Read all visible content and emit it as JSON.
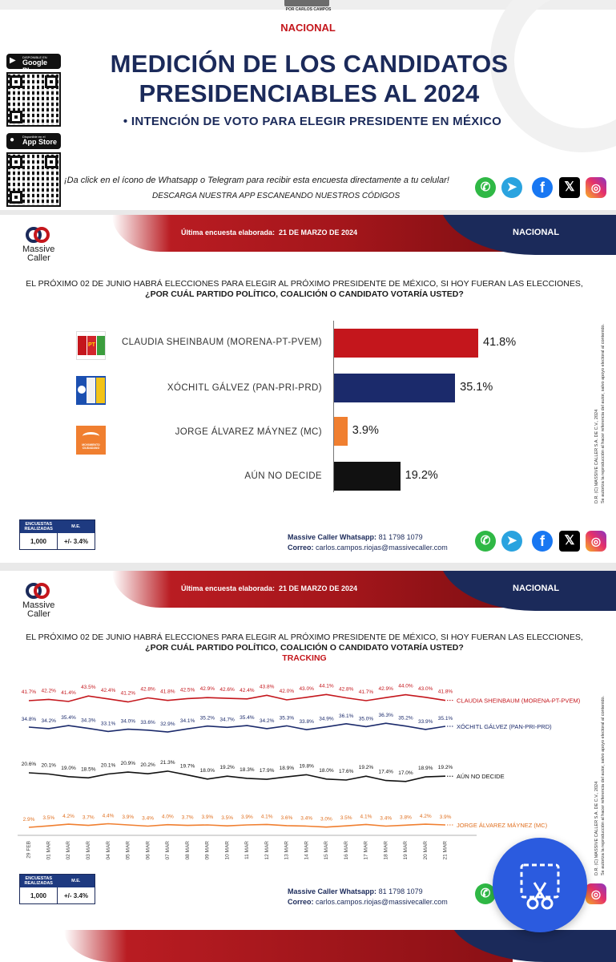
{
  "header": {
    "top_credit": "POR CARLOS CAMPOS",
    "scope": "NACIONAL",
    "title_line1": "MEDICIÓN DE LOS CANDIDATOS",
    "title_line2": "PRESIDENCIABLES AL 2024",
    "subtitle": "•   INTENCIÓN DE VOTO PARA ELEGIR PRESIDENTE EN MÉXICO",
    "google_play_small": "DISPONIBLE EN",
    "google_play_big": "Google Play",
    "app_store_small": "Disponible en el",
    "app_store_big": "App Store",
    "promo_line1": "¡Da click en el ícono de Whatsapp o Telegram para recibir esta encuesta directamente a tu celular!",
    "promo_line2": "DESCARGA NUESTRA APP ESCANEANDO NUESTROS CÓDIGOS"
  },
  "panel1": {
    "latest_label": "Última encuesta elaborada:",
    "latest_date": "21 DE MARZO DE 2024",
    "scope": "NACIONAL",
    "brand_line1": "Massive",
    "brand_line2": "Caller",
    "question_line1": "EL PRÓXIMO 02 DE JUNIO HABRÁ ELECCIONES PARA ELEGIR AL PRÓXIMO PRESIDENTE DE MÉXICO, SI HOY FUERAN LAS ELECCIONES,",
    "question_line2": "¿POR CUÁL PARTIDO POLÍTICO, COALICIÓN O CANDIDATO VOTARÍA USTED?",
    "vertical_credit_1": "D.R. (C) MASSIVE CALLER S.A. DE C.V., 2024",
    "vertical_credit_2": "Se autoriza la reproducción al hacer referencia del autor, salvo apoyo electoral al contenido.",
    "table": {
      "col1_head": "ENCUESTAS REALIZADAS",
      "col2_head": "M.E.",
      "col1_value": "1,000",
      "col2_value": "+/- 3.4%"
    },
    "whatsapp_label": "Massive Caller Whatsapp:",
    "whatsapp_number": "81 1798 1079",
    "email_label": "Correo:",
    "email": "carlos.campos.riojas@massivecaller.com",
    "logo_pt": "PT",
    "logo_mc": "MOVIMIENTO CIUDADANO"
  },
  "panel2": {
    "latest_label": "Última encuesta elaborada:",
    "latest_date": "21 DE MARZO DE 2024",
    "scope": "NACIONAL",
    "brand_line1": "Massive",
    "brand_line2": "Caller",
    "question_line1": "EL PRÓXIMO 02 DE JUNIO HABRÁ ELECCIONES PARA ELEGIR AL PRÓXIMO PRESIDENTE DE MÉXICO, SI HOY FUERAN LAS ELECCIONES,",
    "question_line2": "¿POR CUÁL PARTIDO POLÍTICO, COALICIÓN O CANDIDATO VOTARÍA USTED?",
    "tracking": "TRACKING",
    "vertical_credit_1": "D.R. (C) MASSIVE CALLER S.A. DE C.V., 2024",
    "vertical_credit_2": "Se autoriza la reproducción al hacer referencia del autor, salvo apoyo electoral al contenido.",
    "table": {
      "col1_head": "ENCUESTAS REALIZADAS",
      "col2_head": "M.E.",
      "col1_value": "1,000",
      "col2_value": "+/- 3.4%"
    },
    "whatsapp_label": "Massive Caller Whatsapp:",
    "whatsapp_number": "81 1798 1079",
    "email_label": "Correo:",
    "email": "carlos.campos.riojas@massivecaller.com"
  },
  "colors": {
    "morena": "#c4161c",
    "pan": "#1b2a6b",
    "mc": "#f07f30",
    "undecided": "#111111",
    "navy": "#1b2a5a"
  },
  "chart_data": [
    {
      "type": "bar",
      "orientation": "horizontal",
      "title": "¿POR CUÁL PARTIDO POLÍTICO, COALICIÓN O CANDIDATO VOTARÍA USTED?",
      "categories": [
        "CLAUDIA SHEINBAUM (MORENA-PT-PVEM)",
        "XÓCHITL GÁLVEZ (PAN-PRI-PRD)",
        "JORGE ÁLVAREZ MÁYNEZ (MC)",
        "AÚN NO DECIDE"
      ],
      "values": [
        41.8,
        35.1,
        3.9,
        19.2
      ],
      "value_labels": [
        "41.8%",
        "35.1%",
        "3.9%",
        "19.2%"
      ],
      "colors": [
        "#c4161c",
        "#1b2a6b",
        "#f07f30",
        "#111111"
      ],
      "xlim": [
        0,
        50
      ]
    },
    {
      "type": "line",
      "title": "TRACKING",
      "x": [
        "29 FEB",
        "01 MAR",
        "02 MAR",
        "03 MAR",
        "04 MAR",
        "05 MAR",
        "06 MAR",
        "07 MAR",
        "08 MAR",
        "09 MAR",
        "10 MAR",
        "11 MAR",
        "12 MAR",
        "13 MAR",
        "14 MAR",
        "15 MAR",
        "16 MAR",
        "17 MAR",
        "18 MAR",
        "19 MAR",
        "20 MAR",
        "21 MAR"
      ],
      "series": [
        {
          "name": "CLAUDIA SHEINBAUM (MORENA-PT-PVEM)",
          "color": "#c4161c",
          "values": [
            41.7,
            42.2,
            41.4,
            43.5,
            42.4,
            41.2,
            42.8,
            41.8,
            42.5,
            42.9,
            42.6,
            42.4,
            43.8,
            42.0,
            43.0,
            44.1,
            42.8,
            41.7,
            42.9,
            44.0,
            43.0,
            41.8
          ],
          "labels": [
            "41.7%",
            "42.2%",
            "41.4%",
            "43.5%",
            "42.4%",
            "41.2%",
            "42.8%",
            "41.8%",
            "42.5%",
            "42.9%",
            "42.6%",
            "42.4%",
            "43.8%",
            "42.0%",
            "43.0%",
            "44.1%",
            "42.8%",
            "41.7%",
            "42.9%",
            "44.0%",
            "43.0%",
            "41.8%"
          ]
        },
        {
          "name": "XÓCHITL GÁLVEZ (PAN-PRI-PRD)",
          "color": "#1b2a6b",
          "values": [
            34.8,
            34.2,
            35.4,
            34.3,
            33.1,
            34.0,
            33.6,
            32.9,
            34.1,
            35.2,
            34.7,
            35.4,
            34.2,
            35.3,
            33.8,
            34.9,
            36.1,
            35.0,
            36.3,
            35.2,
            33.9,
            35.1
          ],
          "labels": [
            "34.8%",
            "34.2%",
            "35.4%",
            "34.3%",
            "33.1%",
            "34.0%",
            "33.6%",
            "32.9%",
            "34.1%",
            "35.2%",
            "34.7%",
            "35.4%",
            "34.2%",
            "35.3%",
            "33.8%",
            "34.9%",
            "36.1%",
            "35.0%",
            "36.3%",
            "35.2%",
            "33.9%",
            "35.1%"
          ]
        },
        {
          "name": "AÚN NO DECIDE",
          "color": "#111111",
          "values": [
            20.6,
            20.1,
            19.0,
            18.5,
            20.1,
            20.9,
            20.2,
            21.3,
            19.7,
            18.0,
            19.2,
            18.3,
            17.9,
            18.9,
            19.8,
            18.0,
            17.6,
            19.2,
            17.4,
            17.0,
            18.9,
            19.2
          ],
          "labels": [
            "20.6%",
            "20.1%",
            "19.0%",
            "18.5%",
            "20.1%",
            "20.9%",
            "20.2%",
            "21.3%",
            "19.7%",
            "18.0%",
            "19.2%",
            "18.3%",
            "17.9%",
            "18.9%",
            "19.8%",
            "18.0%",
            "17.6%",
            "19.2%",
            "17.4%",
            "17.0%",
            "18.9%",
            "19.2%"
          ]
        },
        {
          "name": "JORGE ÁLVAREZ MÁYNEZ (MC)",
          "color": "#f07f30",
          "values": [
            2.9,
            3.5,
            4.2,
            3.7,
            4.4,
            3.9,
            3.4,
            4.0,
            3.7,
            3.9,
            3.5,
            3.9,
            4.1,
            3.6,
            3.4,
            3.0,
            3.5,
            4.1,
            3.4,
            3.8,
            4.2,
            3.9
          ],
          "labels": [
            "2.9%",
            "3.5%",
            "4.2%",
            "3.7%",
            "4.4%",
            "3.9%",
            "3.4%",
            "4.0%",
            "3.7%",
            "3.9%",
            "3.5%",
            "3.9%",
            "4.1%",
            "3.6%",
            "3.4%",
            "3.0%",
            "3.5%",
            "4.1%",
            "3.4%",
            "3.8%",
            "4.2%",
            "3.9%"
          ]
        }
      ]
    }
  ]
}
